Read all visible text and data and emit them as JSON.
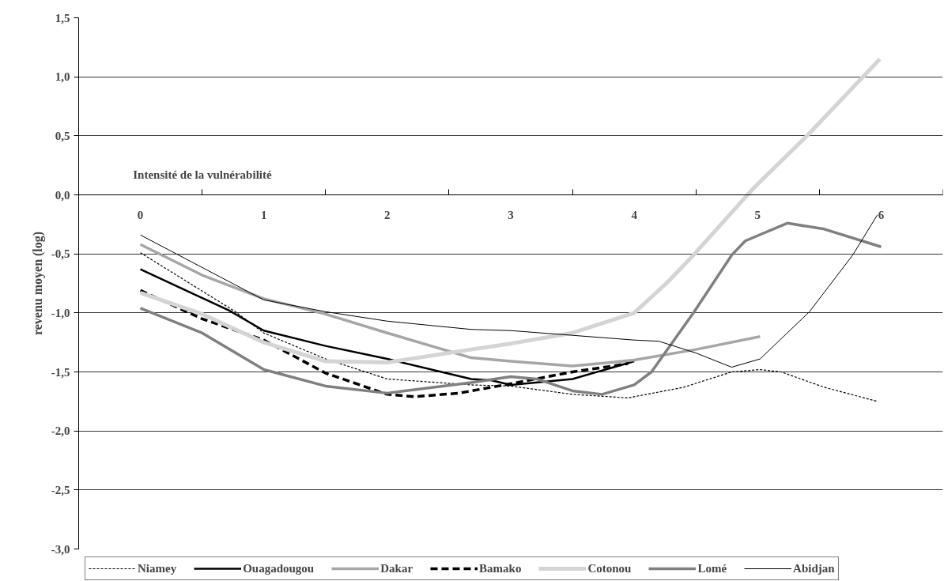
{
  "chart_data": {
    "type": "line",
    "xlabel": "Intensité de la vulnérabilité",
    "ylabel": "revenu moyen (log)",
    "xlim": [
      -0.5,
      6.5
    ],
    "xticks": [
      0,
      1,
      2,
      3,
      4,
      5,
      6
    ],
    "ylim": [
      -3,
      1.5
    ],
    "yticks": [
      {
        "value": -3,
        "label": "-3,0"
      },
      {
        "value": -2.5,
        "label": "-2,5"
      },
      {
        "value": -2,
        "label": "-2,0"
      },
      {
        "value": -1.5,
        "label": "-1,5"
      },
      {
        "value": -1,
        "label": "-1,0"
      },
      {
        "value": -0.5,
        "label": "-0,5"
      },
      {
        "value": 0,
        "label": "0,0"
      },
      {
        "value": 0.5,
        "label": "0,5"
      },
      {
        "value": 1,
        "label": "1,0"
      },
      {
        "value": 1.5,
        "label": "1,5"
      }
    ],
    "grid": "y",
    "legend": "bottom",
    "marker": "none",
    "series": [
      {
        "name": "Niamey",
        "color": "#000000",
        "line_style": "dotted",
        "x": [
          0,
          0.77,
          1,
          1.5,
          2,
          2.68,
          3,
          3.5,
          3.95,
          4.4,
          4.79,
          5.02,
          5.19,
          5.54,
          5.97
        ],
        "values": [
          -0.49,
          -0.99,
          -1.17,
          -1.39,
          -1.56,
          -1.61,
          -1.62,
          -1.69,
          -1.72,
          -1.63,
          -1.5,
          -1.48,
          -1.5,
          -1.63,
          -1.75
        ]
      },
      {
        "name": "Ouagadougou",
        "color": "#000000",
        "line_style": "solid",
        "x": [
          0,
          0.72,
          1,
          1.5,
          2,
          2.68,
          2.84,
          3,
          3.5,
          4
        ],
        "values": [
          -0.63,
          -0.98,
          -1.15,
          -1.28,
          -1.39,
          -1.56,
          -1.57,
          -1.61,
          -1.56,
          -1.41
        ]
      },
      {
        "name": "Dakar",
        "color": "#a6a6a6",
        "line_style": "solid",
        "x": [
          0,
          0.5,
          1,
          1.5,
          2,
          2.68,
          3,
          3.5,
          4,
          4.5,
          5.02
        ],
        "values": [
          -0.42,
          -0.68,
          -0.88,
          -1.01,
          -1.17,
          -1.38,
          -1.41,
          -1.45,
          -1.4,
          -1.31,
          -1.2
        ]
      },
      {
        "name": "Bamako",
        "color": "#000000",
        "line_style": "dashed",
        "x": [
          0,
          0.5,
          1,
          1.5,
          2,
          2.22,
          2.58,
          3,
          3.5,
          3.95
        ],
        "values": [
          -0.81,
          -1.05,
          -1.23,
          -1.51,
          -1.69,
          -1.71,
          -1.68,
          -1.6,
          -1.5,
          -1.43
        ]
      },
      {
        "name": "Cotonou",
        "color": "#d4d4d4",
        "line_style": "solid",
        "x": [
          0,
          0.5,
          1,
          1.5,
          2,
          2.68,
          3,
          3.5,
          4,
          4.27,
          4.48,
          4.97,
          5.4,
          5.99
        ],
        "values": [
          -0.83,
          -1.01,
          -1.25,
          -1.41,
          -1.42,
          -1.31,
          -1.26,
          -1.17,
          -1.0,
          -0.74,
          -0.51,
          0.06,
          0.5,
          1.15
        ]
      },
      {
        "name": "Lomé",
        "color": "#808080",
        "line_style": "solid",
        "x": [
          0,
          0.5,
          1,
          1.5,
          2,
          2.68,
          3,
          3.21,
          3.5,
          3.74,
          4,
          4.14,
          4.48,
          4.79,
          4.9,
          5.24,
          5.54,
          6.0
        ],
        "values": [
          -0.96,
          -1.17,
          -1.48,
          -1.62,
          -1.68,
          -1.59,
          -1.54,
          -1.56,
          -1.66,
          -1.69,
          -1.61,
          -1.5,
          -1.0,
          -0.51,
          -0.39,
          -0.24,
          -0.29,
          -0.44
        ]
      },
      {
        "name": "Abidjan",
        "color": "#000000",
        "line_style": "solid",
        "x": [
          0,
          1,
          1.5,
          2,
          2.68,
          3,
          3.5,
          4,
          4.2,
          4.5,
          4.79,
          5.02,
          5.19,
          5.42,
          5.77,
          5.97
        ],
        "values": [
          -0.34,
          -0.89,
          -0.99,
          -1.07,
          -1.14,
          -1.15,
          -1.19,
          -1.23,
          -1.24,
          -1.34,
          -1.46,
          -1.39,
          -1.22,
          -0.99,
          -0.51,
          -0.17
        ]
      }
    ]
  }
}
